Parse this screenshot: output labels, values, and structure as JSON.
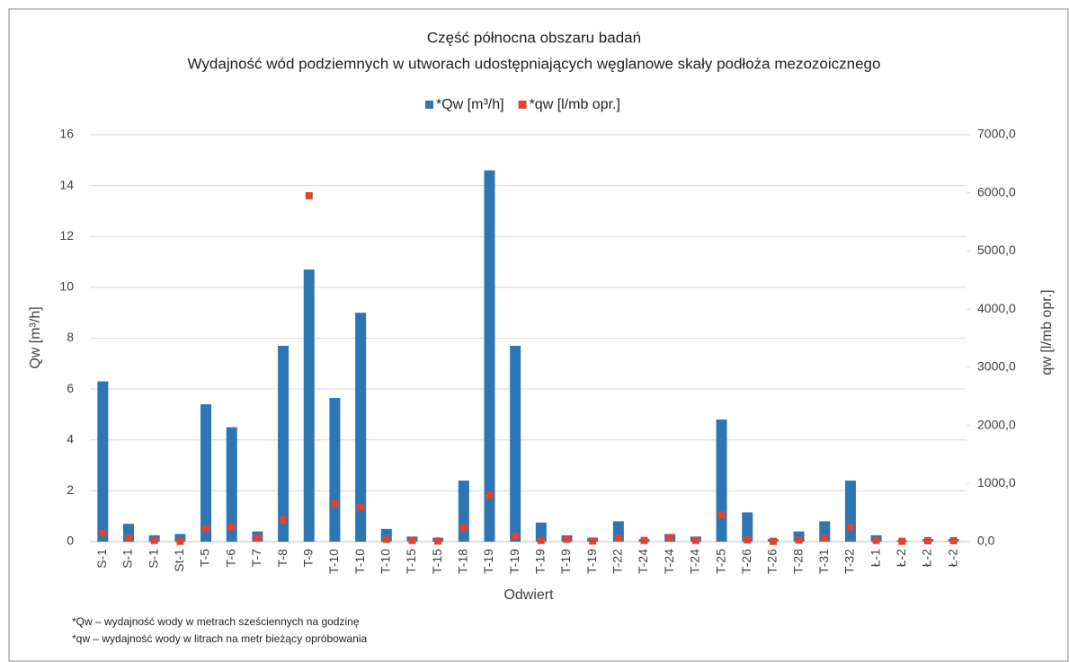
{
  "chart_data": {
    "type": "bar",
    "title": "Część północna obszaru badań",
    "subtitle": "Wydajność wód podziemnych w utworach udostępniających węglanowe skały podłoża mezozoicznego",
    "x_label": "Odwiert",
    "y_label": "Qw [m³/h]",
    "y2_label": "qw [l/mb opr.]",
    "categories": [
      "S-1",
      "S-1",
      "S-1",
      "St-1",
      "T-5",
      "T-6",
      "T-7",
      "T-8",
      "T-9",
      "T-10",
      "T-10",
      "T-10",
      "T-15",
      "T-15",
      "T-18",
      "T-19",
      "T-19",
      "T-19",
      "T-19",
      "T-19",
      "T-22",
      "T-24",
      "T-24",
      "T-24",
      "T-25",
      "T-26",
      "T-26",
      "T-28",
      "T-31",
      "T-32",
      "Ł-1",
      "Ł-2",
      "Ł-2",
      "Ł-2"
    ],
    "series": [
      {
        "name": "*Qw [m³/h]",
        "type": "bar",
        "color": "#2e75b6",
        "values": [
          6.3,
          0.7,
          0.25,
          0.3,
          5.4,
          4.5,
          0.4,
          7.7,
          10.7,
          5.65,
          9.0,
          0.5,
          0.2,
          0.15,
          2.4,
          14.6,
          7.7,
          0.75,
          0.25,
          0.15,
          0.8,
          0.1,
          0.3,
          0.2,
          4.8,
          1.15,
          0.1,
          0.4,
          0.8,
          2.4,
          0.25,
          0.05,
          0.1,
          0.1
        ]
      },
      {
        "name": "*qw [l/mb opr.]",
        "type": "scatter",
        "axis": "y2",
        "color": "#e0452b",
        "values": [
          150,
          60,
          20,
          5,
          220,
          250,
          60,
          370,
          5950,
          650,
          590,
          40,
          20,
          10,
          240,
          800,
          90,
          20,
          40,
          10,
          60,
          20,
          70,
          20,
          460,
          30,
          5,
          25,
          60,
          250,
          20,
          5,
          15,
          15
        ]
      }
    ],
    "ylim": [
      0,
      16
    ],
    "yticks": [
      0,
      2,
      4,
      6,
      8,
      10,
      12,
      14,
      16
    ],
    "y2lim": [
      0,
      7000
    ],
    "y2ticks": [
      {
        "value": 0,
        "label": "0,0"
      },
      {
        "value": 1000,
        "label": "1000,0"
      },
      {
        "value": 2000,
        "label": "2000,0"
      },
      {
        "value": 3000,
        "label": "3000,0"
      },
      {
        "value": 4000,
        "label": "4000,0"
      },
      {
        "value": 5000,
        "label": "5000,0"
      },
      {
        "value": 6000,
        "label": "6000,0"
      },
      {
        "value": 7000,
        "label": "7000,0"
      }
    ],
    "grid": true,
    "legend": "top",
    "footnotes": [
      "*Qw – wydajność wody w metrach sześciennych na godzinę",
      "*qw – wydajność wody w litrach na metr bieżący opróbowania"
    ]
  }
}
